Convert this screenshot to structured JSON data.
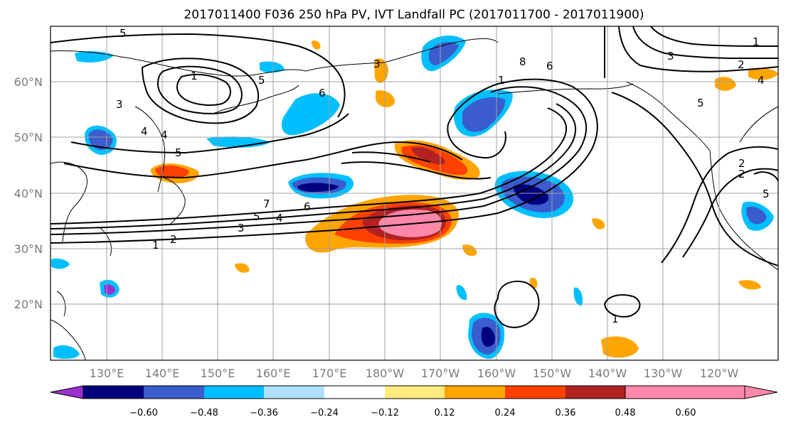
{
  "title": "2017011400 F036 250 hPa PV, IVT Landfall PC (2017011700 - 2017011900)",
  "map": {
    "lat_labels": [
      "60°N",
      "50°N",
      "40°N",
      "30°N",
      "20°N"
    ],
    "lon_labels": [
      "130°E",
      "140°E",
      "150°E",
      "160°E",
      "170°E",
      "180°W",
      "170°W",
      "160°W",
      "150°W",
      "140°W",
      "130°W",
      "120°W"
    ],
    "contour_labels": [
      "5",
      "1",
      "3",
      "4",
      "5",
      "6",
      "8",
      "6",
      "7",
      "6",
      "5",
      "4",
      "3",
      "2",
      "1",
      "3",
      "2",
      "4",
      "5",
      "2",
      "1",
      "1",
      "5",
      "1",
      "2",
      "3",
      "4",
      "5"
    ]
  },
  "colorbar": {
    "tick_labels": [
      "−0.60",
      "−0.48",
      "−0.36",
      "−0.24",
      "−0.12",
      "0.12",
      "0.24",
      "0.36",
      "0.48",
      "0.60"
    ],
    "colors": [
      "#9b30d0",
      "#00007f",
      "#3a5ccc",
      "#00bfff",
      "#b0e0ff",
      "#ffffff",
      "#ffeb80",
      "#ffa500",
      "#ff4000",
      "#b22222",
      "#ff88aa"
    ]
  },
  "palette": {
    "frame": "#000000",
    "grid": "#a0a0a0",
    "contour": "#000000"
  }
}
